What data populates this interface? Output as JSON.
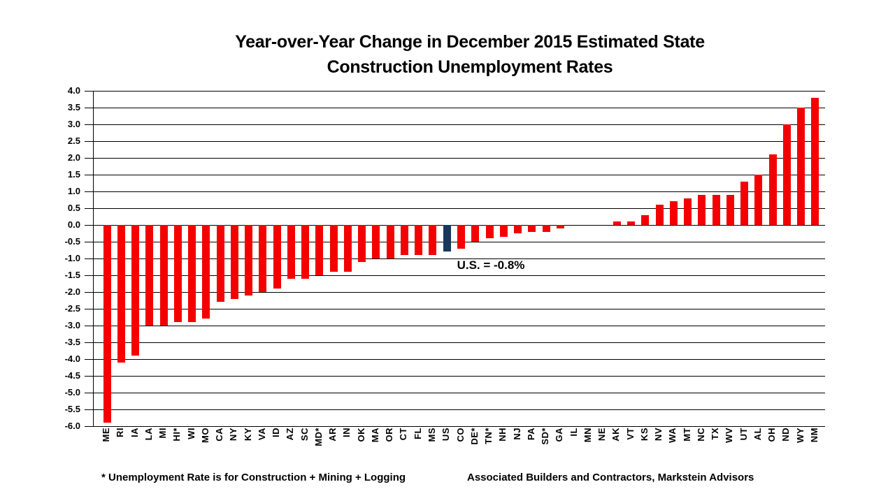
{
  "slide": {
    "title_line1": "Year-over-Year Change in December 2015 Estimated State",
    "title_line2": "Construction Unemployment Rates",
    "footnote_left": "* Unemployment Rate is for Construction + Mining + Logging",
    "footnote_right": "Associated Builders and Contractors, Markstein Advisors"
  },
  "chart_data": {
    "type": "bar",
    "title": "Year-over-Year Change in December 2015 Estimated State Construction Unemployment Rates",
    "categories": [
      "ME",
      "RI",
      "IA",
      "LA",
      "MI",
      "HI*",
      "WI",
      "MO",
      "CA",
      "NY",
      "KY",
      "VA",
      "ID",
      "AZ",
      "SC",
      "MD*",
      "AR",
      "IN",
      "OK",
      "MA",
      "OR",
      "CT",
      "FL",
      "MS",
      "US",
      "CO",
      "DE*",
      "TN*",
      "NH",
      "NJ",
      "PA",
      "SD*",
      "GA",
      "IL",
      "MN",
      "NE",
      "AK",
      "VT",
      "KS",
      "NV",
      "WA",
      "MT",
      "NC",
      "TX",
      "WV",
      "UT",
      "AL",
      "OH",
      "ND",
      "WY",
      "NM"
    ],
    "values": [
      -5.9,
      -4.1,
      -3.9,
      -3.0,
      -3.0,
      -2.9,
      -2.9,
      -2.8,
      -2.3,
      -2.2,
      -2.1,
      -2.0,
      -1.9,
      -1.6,
      -1.6,
      -1.5,
      -1.4,
      -1.4,
      -1.1,
      -1.0,
      -1.0,
      -0.9,
      -0.9,
      -0.9,
      -0.8,
      -0.7,
      -0.5,
      -0.4,
      -0.35,
      -0.25,
      -0.2,
      -0.2,
      -0.1,
      0.0,
      0.0,
      0.0,
      0.1,
      0.1,
      0.3,
      0.6,
      0.7,
      0.8,
      0.9,
      0.9,
      0.9,
      1.3,
      1.5,
      2.1,
      3.0,
      3.5,
      3.8
    ],
    "highlight_category": "US",
    "annotation": "U.S. = -0.8%",
    "xlabel": "",
    "ylabel": "",
    "ylim": [
      -6.0,
      4.0
    ],
    "ytick_step": 0.5,
    "ytick_labels": [
      "4.0",
      "3.5",
      "3.0",
      "2.5",
      "2.0",
      "1.5",
      "1.0",
      "0.5",
      "0.0",
      "-0.5",
      "-1.0",
      "-1.5",
      "-2.0",
      "-2.5",
      "-3.0",
      "-3.5",
      "-4.0",
      "-4.5",
      "-5.0",
      "-5.5",
      "-6.0"
    ],
    "grid": true,
    "legend": false,
    "bar_color": "#F40000",
    "highlight_color": "#17375E",
    "text_color": "#000000",
    "background_color": "#FFFFFF"
  }
}
